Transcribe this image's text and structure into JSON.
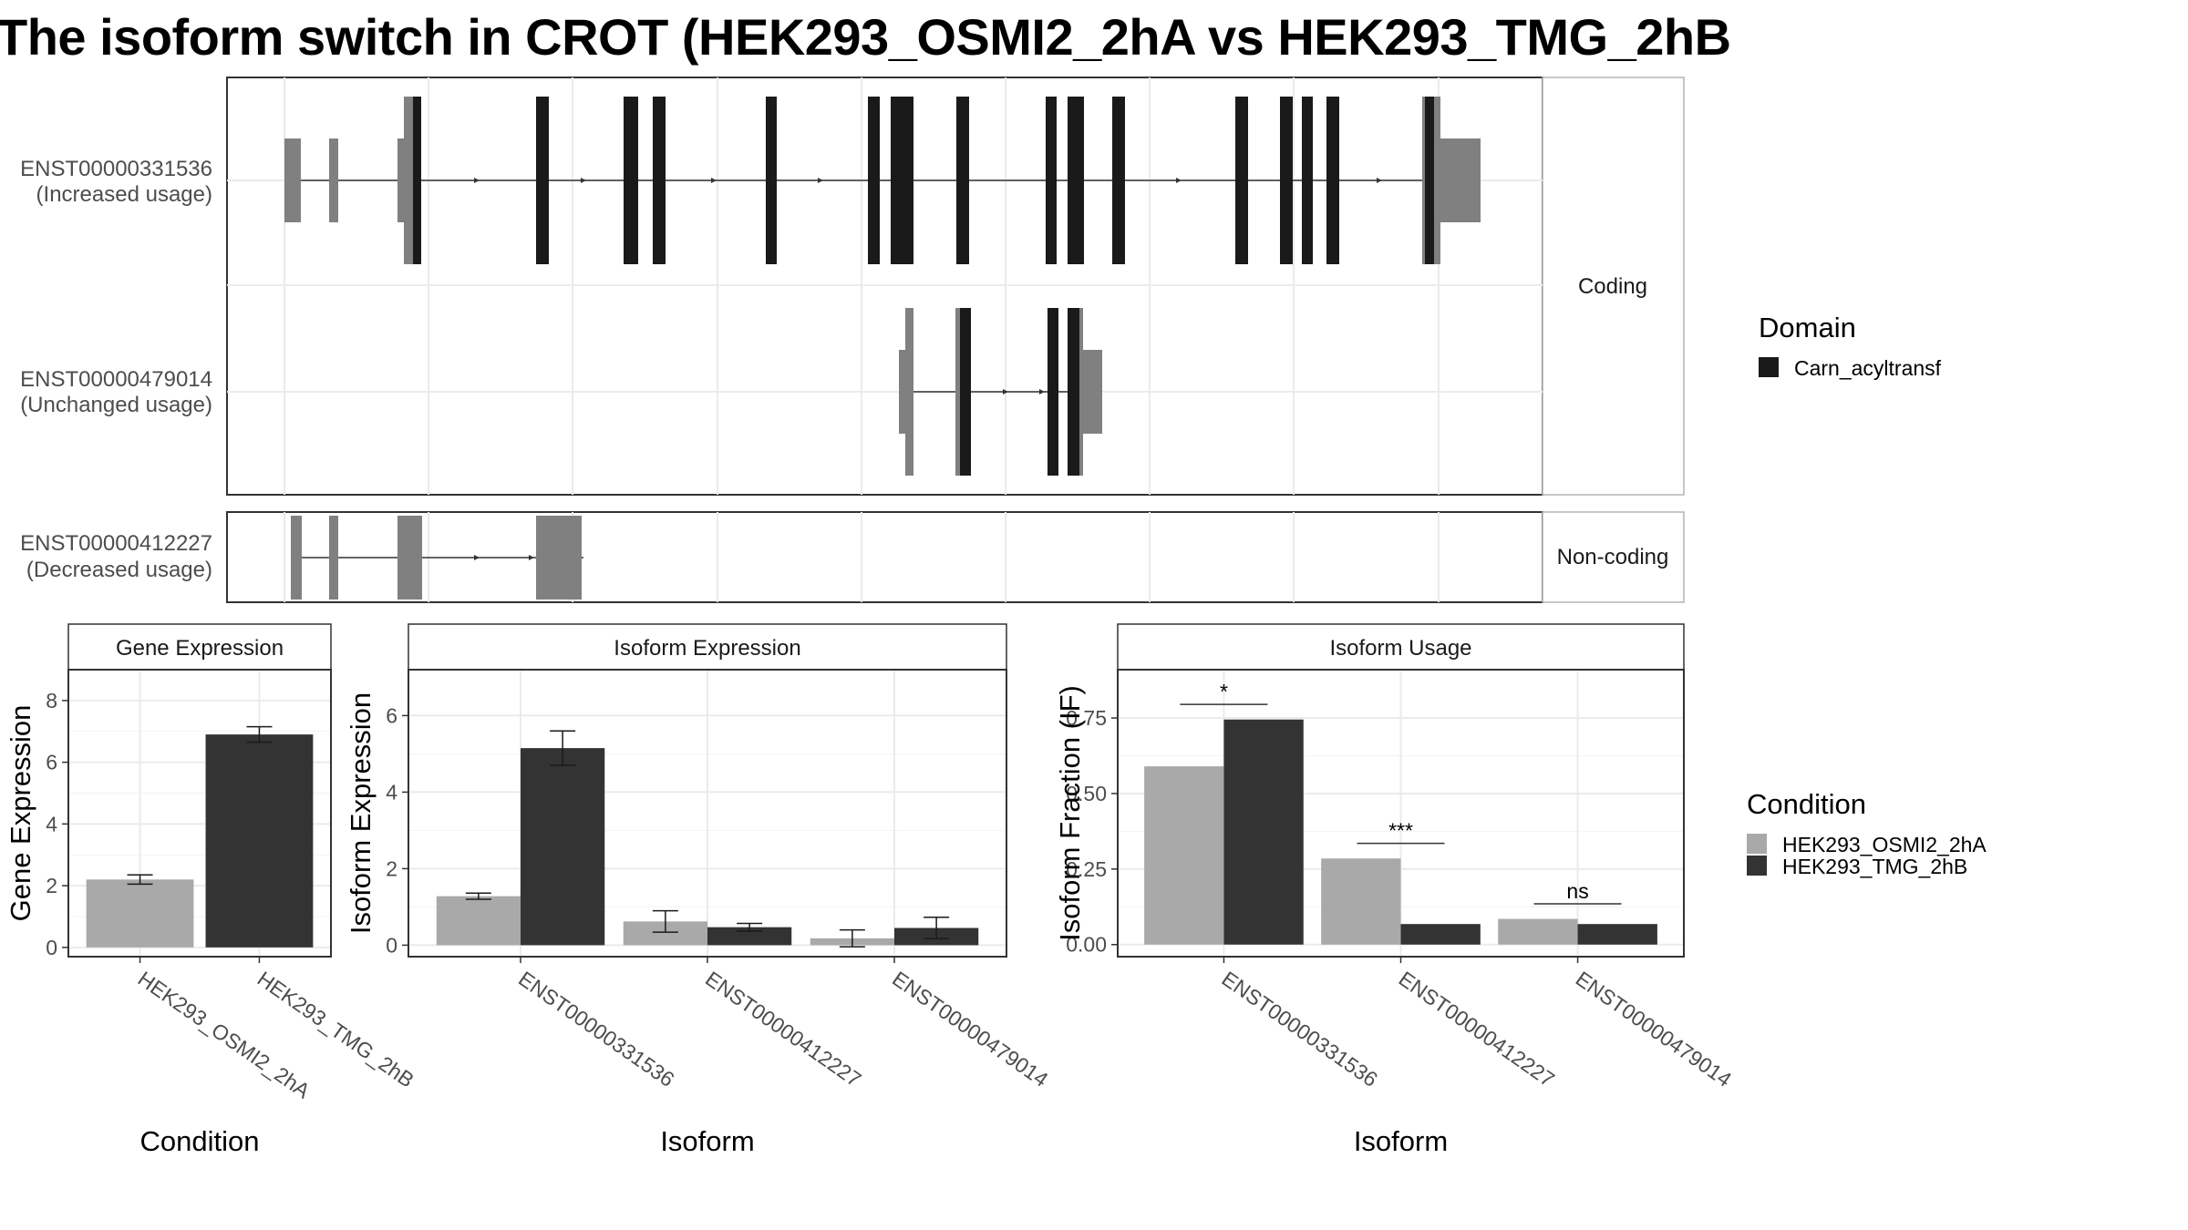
{
  "title": "The isoform switch in CROT (HEK293_OSMI2_2hA vs HEK293_TMG_2hB",
  "colors": {
    "cond1": "#a9a9a9",
    "cond2": "#333333",
    "domain": "#1a1a1a",
    "utr": "#808080"
  },
  "structure": {
    "facets": [
      "Coding",
      "Non-coding"
    ],
    "transcripts": [
      {
        "id": "ENST00000331536",
        "usage": "(Increased usage)",
        "facet": "Coding"
      },
      {
        "id": "ENST00000479014",
        "usage": "(Unchanged usage)",
        "facet": "Coding"
      },
      {
        "id": "ENST00000412227",
        "usage": "(Decreased usage)",
        "facet": "Non-coding"
      }
    ],
    "legend": {
      "title": "Domain",
      "items": [
        "Carn_acyltransf"
      ]
    }
  },
  "chart_data": [
    {
      "type": "bar",
      "panel": "Gene Expression",
      "xlabel": "Condition",
      "ylabel": "Gene Expression",
      "categories": [
        "HEK293_OSMI2_2hA",
        "HEK293_TMG_2hB"
      ],
      "values": [
        2.2,
        6.9
      ],
      "errors": [
        0.15,
        0.25
      ],
      "ylim": [
        -0.3,
        9.0
      ],
      "yticks": [
        0,
        2,
        4,
        6,
        8
      ]
    },
    {
      "type": "bar",
      "panel": "Isoform Expression",
      "xlabel": "Isoform",
      "ylabel": "Isoform Expression",
      "categories": [
        "ENST00000331536",
        "ENST00000412227",
        "ENST00000479014"
      ],
      "series": [
        {
          "name": "HEK293_OSMI2_2hA",
          "values": [
            1.28,
            0.62,
            0.18
          ],
          "errors": [
            0.08,
            0.28,
            0.22
          ]
        },
        {
          "name": "HEK293_TMG_2hB",
          "values": [
            5.15,
            0.47,
            0.45
          ],
          "errors": [
            0.45,
            0.1,
            0.28
          ]
        }
      ],
      "ylim": [
        -0.3,
        7.2
      ],
      "yticks": [
        0,
        2,
        4,
        6
      ]
    },
    {
      "type": "bar",
      "panel": "Isoform Usage",
      "xlabel": "Isoform",
      "ylabel": "Isoform Fraction (IF)",
      "categories": [
        "ENST00000331536",
        "ENST00000412227",
        "ENST00000479014"
      ],
      "series": [
        {
          "name": "HEK293_OSMI2_2hA",
          "values": [
            0.59,
            0.285,
            0.085
          ]
        },
        {
          "name": "HEK293_TMG_2hB",
          "values": [
            0.745,
            0.068,
            0.068
          ]
        }
      ],
      "significance": [
        "*",
        "***",
        "ns"
      ],
      "ylim": [
        -0.04,
        0.91
      ],
      "yticks": [
        0.0,
        0.25,
        0.5,
        0.75
      ],
      "yticklabels": [
        "0.00",
        "0.25",
        "0.50",
        "0.75"
      ]
    }
  ],
  "condition_legend": {
    "title": "Condition",
    "items": [
      "HEK293_OSMI2_2hA",
      "HEK293_TMG_2hB"
    ]
  }
}
